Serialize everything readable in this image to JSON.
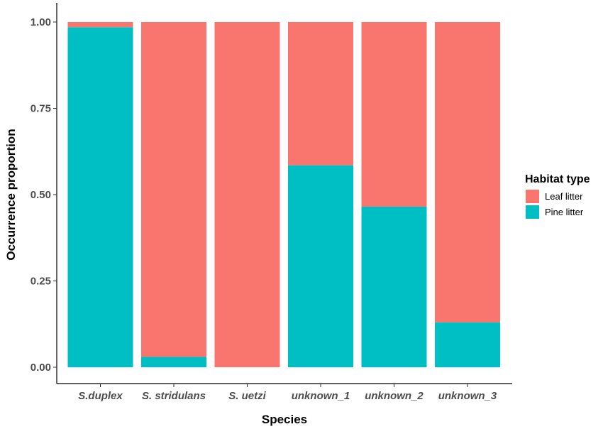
{
  "chart_data": {
    "type": "bar",
    "stacked": true,
    "xlabel": "Species",
    "ylabel": "Occurrence proportion",
    "ylim": [
      0,
      1
    ],
    "yticks": [
      "0.00",
      "0.25",
      "0.50",
      "0.75",
      "1.00"
    ],
    "categories": [
      "S.duplex",
      "S. stridulans",
      "S. uetzi",
      "unknown_1",
      "unknown_2",
      "unknown_3"
    ],
    "series": [
      {
        "name": "Pine litter",
        "color": "#00BFC4",
        "values": [
          0.985,
          0.03,
          0.0,
          0.585,
          0.465,
          0.13
        ]
      },
      {
        "name": "Leaf litter",
        "color": "#F8766D",
        "values": [
          0.015,
          0.97,
          1.0,
          0.415,
          0.535,
          0.87
        ]
      }
    ],
    "legend": {
      "title": "Habitat type",
      "position": "right",
      "entries": [
        {
          "label": "Leaf litter",
          "color": "#F8766D"
        },
        {
          "label": "Pine litter",
          "color": "#00BFC4"
        }
      ]
    },
    "grid": false
  }
}
